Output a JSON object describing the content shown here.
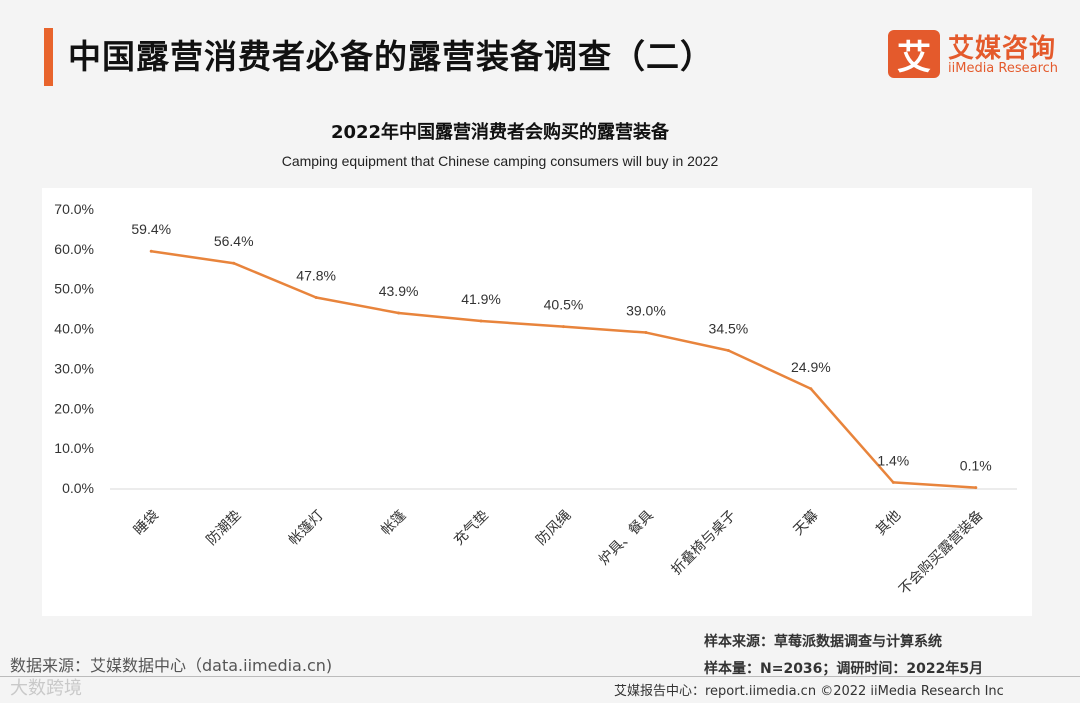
{
  "header": {
    "title": "中国露营消费者必备的露营装备调查（二）"
  },
  "logo": {
    "mark": "艾",
    "cn": "艾媒咨询",
    "en": "iiMedia Research"
  },
  "colors": {
    "accent": "#e8642c",
    "line": "#e8843c"
  },
  "chart_data": {
    "type": "line",
    "title": "2022年中国露营消费者会购买的露营装备",
    "subtitle": "Camping equipment that Chinese camping consumers will buy in 2022",
    "categories": [
      "睡袋",
      "防潮垫",
      "帐篷灯",
      "帐篷",
      "充气垫",
      "防风绳",
      "炉具、餐具",
      "折叠椅与桌子",
      "天幕",
      "其他",
      "不会购买露营装备"
    ],
    "values": [
      59.4,
      56.4,
      47.8,
      43.9,
      41.9,
      40.5,
      39.0,
      34.5,
      24.9,
      1.4,
      0.1
    ],
    "data_labels": [
      "59.4%",
      "56.4%",
      "47.8%",
      "43.9%",
      "41.9%",
      "40.5%",
      "39.0%",
      "34.5%",
      "24.9%",
      "1.4%",
      "0.1%"
    ],
    "y_ticks": [
      "0.0%",
      "10.0%",
      "20.0%",
      "30.0%",
      "40.0%",
      "50.0%",
      "60.0%",
      "70.0%"
    ],
    "ylim": [
      0,
      70
    ],
    "xlabel": "",
    "ylabel": "",
    "grid": false,
    "legend": "none"
  },
  "footer": {
    "source": "数据来源：艾媒数据中心（data.iimedia.cn)",
    "sample_source": "样本来源：草莓派数据调查与计算系统",
    "sample_size": "样本量：N=2036；调研时间：2022年5月",
    "center": "艾媒报告中心：report.iimedia.cn  ©2022  iiMedia Research  Inc",
    "watermark": "大数跨境"
  }
}
